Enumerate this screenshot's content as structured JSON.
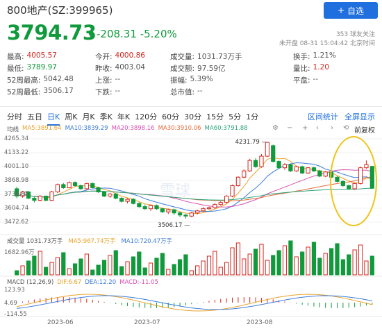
{
  "header": {
    "title": "800地产(SZ:399965)",
    "add_button": "自选",
    "add_icon": "plus-icon"
  },
  "price": {
    "last": "3794.73",
    "change": "-208.31",
    "pct": "-5.20%",
    "arrow_icon": "down-arrow-icon",
    "color": "#109a3c"
  },
  "followers": "353 球友关注",
  "status": "未开盘 08-31 15:04:42 北京时间",
  "quote": {
    "rows": [
      [
        {
          "k": "最高:",
          "v": "4005.57",
          "c": "red"
        },
        {
          "k": "今开:",
          "v": "4000.86",
          "c": "red"
        },
        {
          "k": "成交量:",
          "v": "1031.73万手",
          "c": "gry"
        },
        {
          "k": "换手:",
          "v": "1.21%",
          "c": "gry"
        }
      ],
      [
        {
          "k": "最低:",
          "v": "3789.97",
          "c": "grn"
        },
        {
          "k": "昨收:",
          "v": "4003.04",
          "c": "gry"
        },
        {
          "k": "成交额:",
          "v": "97.59亿",
          "c": "gry"
        },
        {
          "k": "量比:",
          "v": "1.20",
          "c": "red"
        }
      ],
      [
        {
          "k": "52周最高:",
          "v": "5042.48",
          "c": "gry"
        },
        {
          "k": "上涨:",
          "v": "--",
          "c": "gry"
        },
        {
          "k": "振幅:",
          "v": "5.39%",
          "c": "gry"
        },
        {
          "k": "平盘:",
          "v": "--",
          "c": "gry"
        }
      ],
      [
        {
          "k": "52周最低:",
          "v": "3506.17",
          "c": "gry"
        },
        {
          "k": "下跌:",
          "v": "--",
          "c": "gry"
        },
        {
          "k": "总市值:",
          "v": "--",
          "c": "gry"
        },
        {
          "k": "",
          "v": "",
          "c": "gry"
        }
      ]
    ]
  },
  "tabs": [
    "分时",
    "五日",
    "日K",
    "周K",
    "月K",
    "季K",
    "年K",
    "120分",
    "60分",
    "30分",
    "15分",
    "5分",
    "1分"
  ],
  "active_tab": "日K",
  "tools": [
    "区间统计",
    "全屏显示"
  ],
  "ma": [
    {
      "t": "均线",
      "c": "#555"
    },
    {
      "t": "MA5:3891.64",
      "c": "#e8a32a"
    },
    {
      "t": "MA10:3839.29",
      "c": "#3b7bd8"
    },
    {
      "t": "MA20:3898.16",
      "c": "#d84fb0"
    },
    {
      "t": "MA30:3910.06",
      "c": "#e56a38"
    },
    {
      "t": "MA60:3791.88",
      "c": "#2aa57d"
    }
  ],
  "fq_label": "前复权",
  "y_labels": [
    "4265.34",
    "4133.22",
    "4001.10",
    "3868.98",
    "3736.85",
    "3604.74",
    "3472.62"
  ],
  "high_marker": "4231.79",
  "low_marker": "3506.17",
  "vol": [
    {
      "t": "成交量 1031.73万手",
      "c": "#555"
    },
    {
      "t": "MA5:967.74万手",
      "c": "#e8a32a"
    },
    {
      "t": "MA10:720.47万手",
      "c": "#3b7bd8"
    }
  ],
  "vol_max": "1682.96万",
  "macd": [
    {
      "t": "MACD (12,26,9)",
      "c": "#555"
    },
    {
      "t": "DIF:6.67",
      "c": "#e8a32a"
    },
    {
      "t": "DEA:12.20",
      "c": "#3b7bd8"
    },
    {
      "t": "MACD:-11.05",
      "c": "#d84fb0"
    }
  ],
  "macd_labels": [
    "123.93",
    "4.69",
    "-114.55"
  ],
  "x_labels": [
    "2023-06",
    "2023-07",
    "2023-08"
  ],
  "watermark": "雪球",
  "chart_data": {
    "type": "candlestick",
    "ylim": [
      3472.62,
      4265.34
    ],
    "candles": [
      [
        3790,
        3720,
        3810,
        3700
      ],
      [
        3720,
        3760,
        3770,
        3705
      ],
      [
        3760,
        3700,
        3770,
        3690
      ],
      [
        3700,
        3680,
        3715,
        3660
      ],
      [
        3680,
        3720,
        3730,
        3670
      ],
      [
        3720,
        3680,
        3725,
        3670
      ],
      [
        3680,
        3760,
        3770,
        3675
      ],
      [
        3760,
        3830,
        3840,
        3750
      ],
      [
        3830,
        3800,
        3845,
        3790
      ],
      [
        3800,
        3850,
        3860,
        3795
      ],
      [
        3850,
        3820,
        3860,
        3810
      ],
      [
        3820,
        3790,
        3830,
        3780
      ],
      [
        3790,
        3840,
        3845,
        3780
      ],
      [
        3840,
        3800,
        3850,
        3795
      ],
      [
        3800,
        3760,
        3810,
        3750
      ],
      [
        3760,
        3720,
        3770,
        3710
      ],
      [
        3720,
        3740,
        3750,
        3705
      ],
      [
        3740,
        3700,
        3750,
        3690
      ],
      [
        3700,
        3670,
        3710,
        3660
      ],
      [
        3670,
        3690,
        3700,
        3650
      ],
      [
        3690,
        3650,
        3700,
        3640
      ],
      [
        3650,
        3620,
        3660,
        3610
      ],
      [
        3620,
        3600,
        3640,
        3590
      ],
      [
        3600,
        3630,
        3640,
        3580
      ],
      [
        3630,
        3600,
        3640,
        3590
      ],
      [
        3600,
        3570,
        3610,
        3560
      ],
      [
        3570,
        3590,
        3600,
        3550
      ],
      [
        3590,
        3560,
        3600,
        3540
      ],
      [
        3560,
        3540,
        3575,
        3520
      ],
      [
        3540,
        3530,
        3550,
        3506.17
      ],
      [
        3530,
        3560,
        3570,
        3520
      ],
      [
        3560,
        3580,
        3590,
        3545
      ],
      [
        3580,
        3600,
        3615,
        3570
      ],
      [
        3600,
        3610,
        3620,
        3590
      ],
      [
        3610,
        3640,
        3655,
        3600
      ],
      [
        3640,
        3660,
        3670,
        3630
      ],
      [
        3660,
        3720,
        3730,
        3650
      ],
      [
        3720,
        3820,
        3830,
        3710
      ],
      [
        3820,
        3900,
        3910,
        3810
      ],
      [
        3900,
        3960,
        3975,
        3890
      ],
      [
        3960,
        4060,
        4075,
        3950
      ],
      [
        4060,
        4000,
        4080,
        3990
      ],
      [
        4000,
        4100,
        4120,
        3990
      ],
      [
        4100,
        4231.79,
        4231.79,
        4090
      ],
      [
        4200,
        4050,
        4210,
        4040
      ],
      [
        4050,
        3990,
        4060,
        3980
      ],
      [
        3990,
        4020,
        4035,
        3970
      ],
      [
        4020,
        3960,
        4030,
        3950
      ],
      [
        3960,
        4000,
        4010,
        3950
      ],
      [
        4000,
        3940,
        4010,
        3930
      ],
      [
        3940,
        3990,
        3995,
        3930
      ],
      [
        3990,
        3960,
        4000,
        3950
      ],
      [
        3960,
        3910,
        3970,
        3900
      ],
      [
        3910,
        3950,
        3960,
        3900
      ],
      [
        3950,
        3900,
        3960,
        3890
      ],
      [
        3900,
        3860,
        3910,
        3850
      ],
      [
        3860,
        3820,
        3870,
        3810
      ],
      [
        3820,
        3790,
        3830,
        3780
      ],
      [
        3790,
        3840,
        3850,
        3780
      ],
      [
        3840,
        3990,
        4000,
        3830
      ],
      [
        3990,
        4020,
        4060,
        3980
      ],
      [
        4003.04,
        3794.73,
        4005.57,
        3789.97
      ]
    ]
  }
}
